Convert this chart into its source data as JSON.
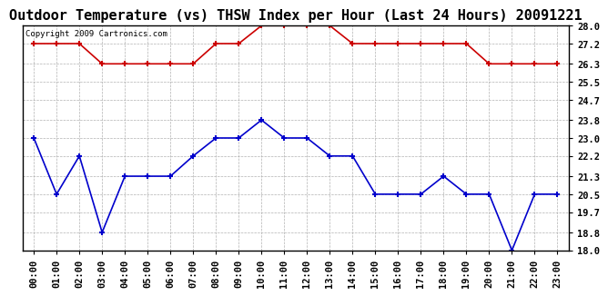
{
  "title": "Outdoor Temperature (vs) THSW Index per Hour (Last 24 Hours) 20091221",
  "copyright": "Copyright 2009 Cartronics.com",
  "x_labels": [
    "00:00",
    "01:00",
    "02:00",
    "03:00",
    "04:00",
    "05:00",
    "06:00",
    "07:00",
    "08:00",
    "09:00",
    "10:00",
    "11:00",
    "12:00",
    "13:00",
    "14:00",
    "15:00",
    "16:00",
    "17:00",
    "18:00",
    "19:00",
    "20:00",
    "21:00",
    "22:00",
    "23:00"
  ],
  "red_data": [
    27.2,
    27.2,
    27.2,
    26.3,
    26.3,
    26.3,
    26.3,
    26.3,
    27.2,
    27.2,
    28.0,
    28.0,
    28.0,
    28.0,
    27.2,
    27.2,
    27.2,
    27.2,
    27.2,
    27.2,
    26.3,
    26.3,
    26.3,
    26.3
  ],
  "blue_data": [
    23.0,
    20.5,
    22.2,
    18.8,
    21.3,
    21.3,
    21.3,
    22.2,
    23.0,
    23.0,
    23.8,
    23.0,
    23.0,
    22.2,
    22.2,
    20.5,
    20.5,
    20.5,
    21.3,
    20.5,
    20.5,
    18.0,
    20.5,
    20.5
  ],
  "ylim": [
    18.0,
    28.0
  ],
  "yticks": [
    18.0,
    18.8,
    19.7,
    20.5,
    21.3,
    22.2,
    23.0,
    23.8,
    24.7,
    25.5,
    26.3,
    27.2,
    28.0
  ],
  "red_color": "#cc0000",
  "blue_color": "#0000cc",
  "background_color": "#ffffff",
  "grid_color": "#aaaaaa",
  "title_fontsize": 11,
  "copyright_fontsize": 6.5,
  "tick_fontsize": 7.5
}
